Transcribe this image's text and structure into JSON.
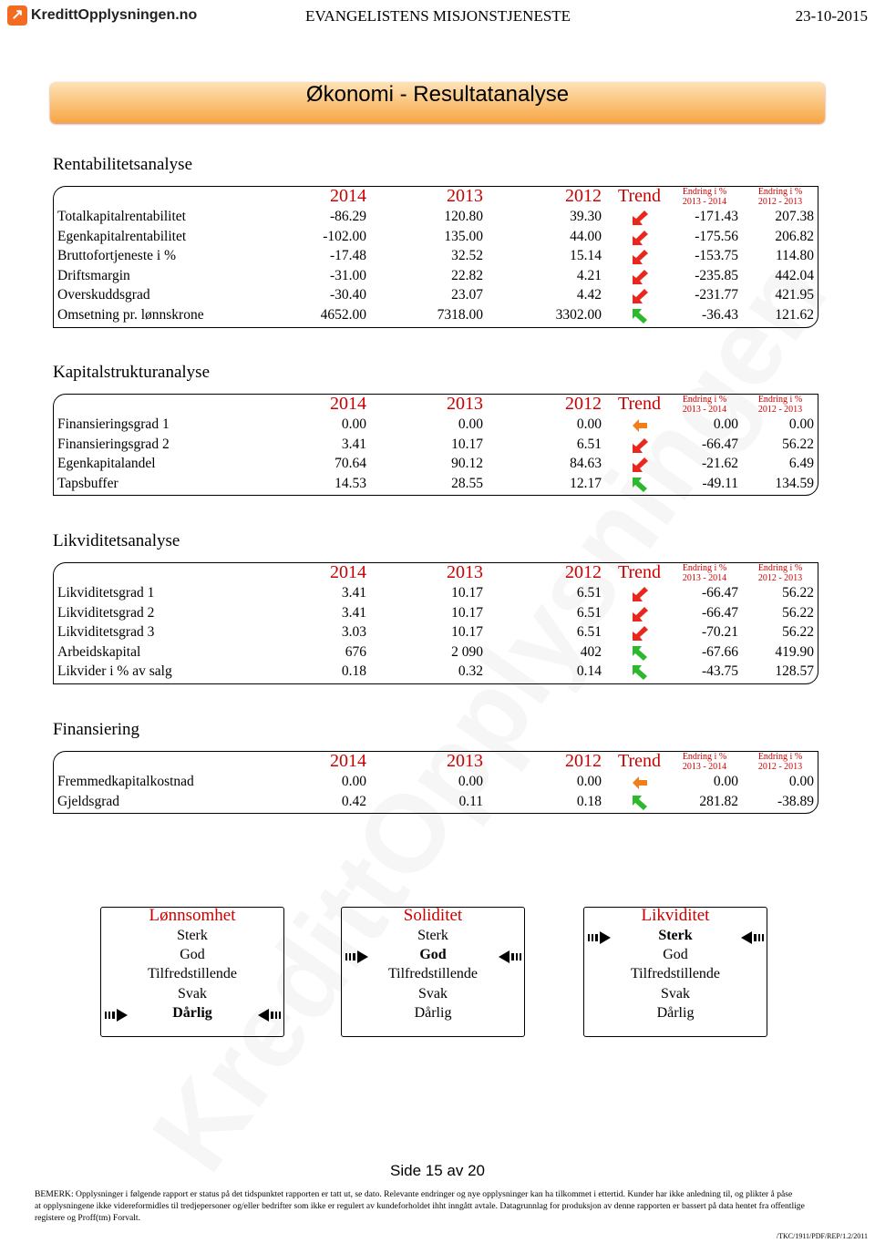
{
  "header": {
    "logo": "KredittOpplysningen.no",
    "company": "EVANGELISTENS MISJONSTJENESTE",
    "date": "23-10-2015"
  },
  "banner": "Økonomi - Resultatanalyse",
  "watermark": "KredittOpplysningen",
  "sections": [
    {
      "title": "Rentabilitetsanalyse",
      "years": [
        "2014",
        "2013",
        "2012"
      ],
      "trend_header": "Trend",
      "change_headers": [
        {
          "label": "Endring i %",
          "period": "2013 - 2014"
        },
        {
          "label": "Endring i %",
          "period": "2012 - 2013"
        }
      ],
      "rows": [
        {
          "label": "Totalkapitalrentabilitet",
          "values": [
            "-86.29",
            "120.80",
            "39.30"
          ],
          "trend": "down",
          "changes": [
            "-171.43",
            "207.38"
          ]
        },
        {
          "label": "Egenkapitalrentabilitet",
          "values": [
            "-102.00",
            "135.00",
            "44.00"
          ],
          "trend": "down",
          "changes": [
            "-175.56",
            "206.82"
          ]
        },
        {
          "label": "Bruttofortjeneste i %",
          "values": [
            "-17.48",
            "32.52",
            "15.14"
          ],
          "trend": "down",
          "changes": [
            "-153.75",
            "114.80"
          ]
        },
        {
          "label": "Driftsmargin",
          "values": [
            "-31.00",
            "22.82",
            "4.21"
          ],
          "trend": "down",
          "changes": [
            "-235.85",
            "442.04"
          ]
        },
        {
          "label": "Overskuddsgrad",
          "values": [
            "-30.40",
            "23.07",
            "4.42"
          ],
          "trend": "down",
          "changes": [
            "-231.77",
            "421.95"
          ]
        },
        {
          "label": "Omsetning pr. lønnskrone",
          "values": [
            "4652.00",
            "7318.00",
            "3302.00"
          ],
          "trend": "up",
          "changes": [
            "-36.43",
            "121.62"
          ]
        }
      ]
    },
    {
      "title": "Kapitalstrukturanalyse",
      "years": [
        "2014",
        "2013",
        "2012"
      ],
      "trend_header": "Trend",
      "change_headers": [
        {
          "label": "Endring i %",
          "period": "2013 - 2014"
        },
        {
          "label": "Endring i %",
          "period": "2012 - 2013"
        }
      ],
      "rows": [
        {
          "label": "Finansieringsgrad 1",
          "values": [
            "0.00",
            "0.00",
            "0.00"
          ],
          "trend": "flat",
          "changes": [
            "0.00",
            "0.00"
          ]
        },
        {
          "label": "Finansieringsgrad 2",
          "values": [
            "3.41",
            "10.17",
            "6.51"
          ],
          "trend": "down",
          "changes": [
            "-66.47",
            "56.22"
          ]
        },
        {
          "label": "Egenkapitalandel",
          "values": [
            "70.64",
            "90.12",
            "84.63"
          ],
          "trend": "down",
          "changes": [
            "-21.62",
            "6.49"
          ]
        },
        {
          "label": "Tapsbuffer",
          "values": [
            "14.53",
            "28.55",
            "12.17"
          ],
          "trend": "up",
          "changes": [
            "-49.11",
            "134.59"
          ]
        }
      ]
    },
    {
      "title": "Likviditetsanalyse",
      "years": [
        "2014",
        "2013",
        "2012"
      ],
      "trend_header": "Trend",
      "change_headers": [
        {
          "label": "Endring i %",
          "period": "2013 - 2014"
        },
        {
          "label": "Endring i %",
          "period": "2012 - 2013"
        }
      ],
      "rows": [
        {
          "label": "Likviditetsgrad 1",
          "values": [
            "3.41",
            "10.17",
            "6.51"
          ],
          "trend": "down",
          "changes": [
            "-66.47",
            "56.22"
          ]
        },
        {
          "label": "Likviditetsgrad 2",
          "values": [
            "3.41",
            "10.17",
            "6.51"
          ],
          "trend": "down",
          "changes": [
            "-66.47",
            "56.22"
          ]
        },
        {
          "label": "Likviditetsgrad 3",
          "values": [
            "3.03",
            "10.17",
            "6.51"
          ],
          "trend": "down",
          "changes": [
            "-70.21",
            "56.22"
          ]
        },
        {
          "label": "Arbeidskapital",
          "values": [
            "676",
            "2 090",
            "402"
          ],
          "trend": "up",
          "changes": [
            "-67.66",
            "419.90"
          ]
        },
        {
          "label": "Likvider i % av salg",
          "values": [
            "0.18",
            "0.32",
            "0.14"
          ],
          "trend": "up",
          "changes": [
            "-43.75",
            "128.57"
          ]
        }
      ]
    },
    {
      "title": "Finansiering",
      "years": [
        "2014",
        "2013",
        "2012"
      ],
      "trend_header": "Trend",
      "change_headers": [
        {
          "label": "Endring i %",
          "period": "2013 - 2014"
        },
        {
          "label": "Endring i %",
          "period": "2012 - 2013"
        }
      ],
      "rows": [
        {
          "label": "Fremmedkapitalkostnad",
          "values": [
            "0.00",
            "0.00",
            "0.00"
          ],
          "trend": "flat",
          "changes": [
            "0.00",
            "0.00"
          ]
        },
        {
          "label": "Gjeldsgrad",
          "values": [
            "0.42",
            "0.11",
            "0.18"
          ],
          "trend": "up",
          "changes": [
            "281.82",
            "-38.89"
          ]
        }
      ]
    }
  ],
  "ratings": [
    {
      "title": "Lønnsomhet",
      "levels": [
        "Sterk",
        "God",
        "Tilfredstillende",
        "Svak",
        "Dårlig"
      ],
      "selected": 4
    },
    {
      "title": "Soliditet",
      "levels": [
        "Sterk",
        "God",
        "Tilfredstillende",
        "Svak",
        "Dårlig"
      ],
      "selected": 1
    },
    {
      "title": "Likviditet",
      "levels": [
        "Sterk",
        "God",
        "Tilfredstillende",
        "Svak",
        "Dårlig"
      ],
      "selected": 0
    }
  ],
  "footer": {
    "page": "Side 15 av 20",
    "notice": [
      "BEMERK: Opplysninger i følgende rapport er status på det tidspunktet rapporten er tatt ut, se dato. Relevante endringer og nye opplysninger kan ha tilkommet i ettertid. Kunder har ikke anledning til, og plikter å påse",
      "at opplysningene ikke videreformidles til tredjepersoner og/eller bedrifter som ikke er regulert av kundeforholdet ihht inngått avtale. Datagrunnlag for produksjon av denne rapporten er bassert på data hentet fra offentlige",
      "registere og Proff(tm) Forvalt."
    ],
    "code": "/TKC/1911/PDF/REP/1.2/2011"
  }
}
